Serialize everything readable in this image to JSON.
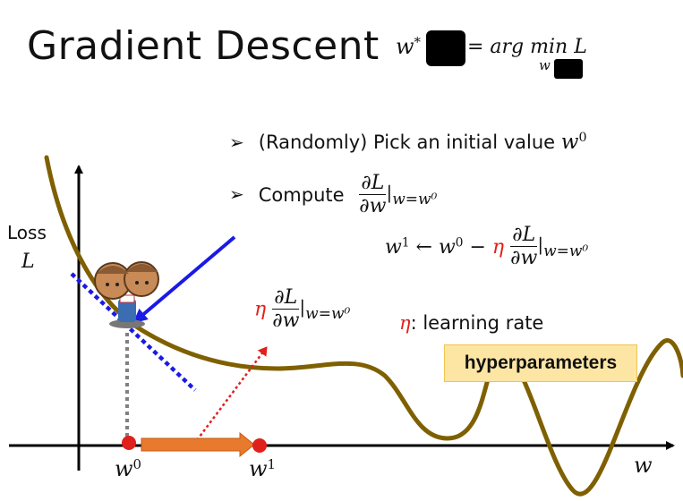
{
  "title": "Gradient Descent",
  "objective": {
    "lhs": "w",
    "lhs_sup": "*",
    "rhs_prefix": "= arg min",
    "rhs_under": "w",
    "rhs_var": "L"
  },
  "bullets": [
    {
      "marker": "➢",
      "text": "(Randomly) Pick an initial value",
      "math_var": "w",
      "math_sup": "0"
    },
    {
      "marker": "➢",
      "text": "Compute",
      "frac_num": "∂L",
      "frac_den": "∂w",
      "eval": "|",
      "eval_sub": "w=w⁰"
    }
  ],
  "update_rule": {
    "lhs": "w",
    "lhs_sup": "1",
    "arrow": "←",
    "w0": "w",
    "w0_sup": "0",
    "minus": "−",
    "eta": "η",
    "frac_num": "∂L",
    "frac_den": "∂w",
    "eval": "|",
    "eval_sub": "w=w⁰"
  },
  "step_label": {
    "eta": "η",
    "frac_num": "∂L",
    "frac_den": "∂w",
    "eval": "|",
    "eval_sub": "w=w⁰"
  },
  "learning_rate": {
    "eta": "η",
    "text": ": learning rate"
  },
  "hyperparameters_label": "hyperparameters",
  "axes": {
    "y_label_line1": "Loss",
    "y_label_line2": "L",
    "x_label": "w",
    "w0_label": "w",
    "w0_sup": "0",
    "w1_label": "w",
    "w1_sup": "1"
  },
  "colors": {
    "curve": "#7f6000",
    "tangent": "#1a1ae6",
    "gradient_arrow": "#1a1ae6",
    "step_arrow": "#e87a2e",
    "dotted_arrow": "#e0201b",
    "points": "#e0201b",
    "guide": "#808080"
  },
  "icons": [
    "character-icon"
  ]
}
